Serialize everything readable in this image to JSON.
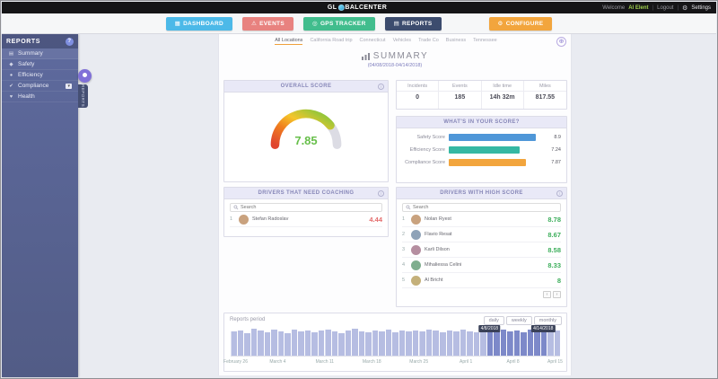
{
  "header": {
    "brand_prefix": "GL",
    "brand_suffix": "BALCENTER",
    "welcome_label": "Welcome",
    "user_name": "Al Elent",
    "logout_label": "Logout",
    "settings_label": "Settings",
    "settings_icon": "⚙",
    "separator": "|"
  },
  "nav": {
    "items": [
      {
        "label": "DASHBOARD",
        "icon": "▦",
        "color": "#4cb9e8",
        "active": false
      },
      {
        "label": "EVENTS",
        "icon": "⚠",
        "color": "#e8827f",
        "active": false
      },
      {
        "label": "GPS TRACKER",
        "icon": "◎",
        "color": "#41bd8d",
        "active": false
      },
      {
        "label": "REPORTS",
        "icon": "▤",
        "color": "#3c4c6e",
        "active": true
      },
      {
        "label": "CONFIGURE",
        "icon": "⚙",
        "color": "#f2a53d",
        "active": false
      }
    ]
  },
  "sidebar": {
    "title": "REPORTS",
    "handle_label": "REPORTS",
    "items": [
      {
        "label": "Summary",
        "icon": "▤",
        "active": true
      },
      {
        "label": "Safety",
        "icon": "◆",
        "active": false
      },
      {
        "label": "Efficiency",
        "icon": "●",
        "active": false
      },
      {
        "label": "Compliance",
        "icon": "✔",
        "flag": "▾",
        "active": false
      },
      {
        "label": "Health",
        "icon": "♥",
        "active": false
      }
    ]
  },
  "content": {
    "tabs": [
      "All Locations",
      "California Road trip",
      "Connecticut",
      "Vehicles",
      "Trade Co",
      "Business",
      "Tennessee"
    ],
    "expand_icon": "⊕",
    "summary_title": "SUMMARY",
    "summary_date_range": "(04/08/2018-04/14/2018)",
    "overall_score": {
      "title": "OVERALL SCORE",
      "value": "7.85",
      "max": 10
    },
    "stats": {
      "columns": [
        {
          "label": "Incidents",
          "value": "0"
        },
        {
          "label": "Events",
          "value": "185"
        },
        {
          "label": "Idle time",
          "value": "14h 32m"
        },
        {
          "label": "Miles",
          "value": "817.55"
        }
      ]
    },
    "score_breakdown": {
      "title": "WHAT'S IN YOUR SCORE?",
      "rows": [
        {
          "label": "Safety Score",
          "value": 8.9,
          "display": "8.9",
          "color": "#4f97d8"
        },
        {
          "label": "Efficiency Score",
          "value": 7.24,
          "display": "7.24",
          "color": "#35b8a3"
        },
        {
          "label": "Compliance Score",
          "value": 7.87,
          "display": "7.87",
          "color": "#f2a53d"
        }
      ]
    },
    "coaching": {
      "title": "DRIVERS THAT NEED COACHING",
      "search_placeholder": "Search",
      "score_color": "#e36a6a",
      "drivers": [
        {
          "rank": "1",
          "name": "Stefan Radoslav",
          "score": "4.44"
        }
      ]
    },
    "high_score": {
      "title": "DRIVERS WITH HIGH SCORE",
      "search_placeholder": "Search",
      "score_color": "#3cae5b",
      "drivers": [
        {
          "rank": "1",
          "name": "Nolan Ryest",
          "score": "8.78"
        },
        {
          "rank": "2",
          "name": "Flavio Resat",
          "score": "8.67"
        },
        {
          "rank": "3",
          "name": "Karli Dilson",
          "score": "8.58"
        },
        {
          "rank": "4",
          "name": "Mihaliessa Celini",
          "score": "8.33"
        },
        {
          "rank": "5",
          "name": "Al Bricht",
          "score": "8"
        }
      ],
      "pager": {
        "prev": "‹",
        "next": "›"
      }
    },
    "reports_period": {
      "title": "Reports period",
      "buttons": [
        "daily",
        "weekly",
        "monthly"
      ],
      "axis_labels": [
        "February 26",
        "March 4",
        "March 11",
        "March 18",
        "March 25",
        "April 1",
        "April 8",
        "April 15"
      ],
      "selection": {
        "start_label": "4/8/2018",
        "end_label": "4/14/2018",
        "start_index": 38,
        "end_index": 46
      },
      "bar_color": "#b6bde2",
      "selected_bar_color": "#7d89c9",
      "bars": [
        0.9,
        0.95,
        0.85,
        1.0,
        0.92,
        0.88,
        0.96,
        0.9,
        0.84,
        0.97,
        0.9,
        0.95,
        0.87,
        0.93,
        0.96,
        0.9,
        0.85,
        0.94,
        0.99,
        0.9,
        0.88,
        0.95,
        0.9,
        0.97,
        0.86,
        0.92,
        0.9,
        0.95,
        0.89,
        0.96,
        0.92,
        0.87,
        0.94,
        0.9,
        0.98,
        0.91,
        0.86,
        0.95,
        0.9,
        0.93,
        0.97,
        0.9,
        0.94,
        0.88,
        0.96,
        0.91,
        0.95,
        0.9,
        0.92
      ]
    }
  },
  "chart_data": [
    {
      "type": "gauge",
      "title": "OVERALL SCORE",
      "value": 7.85,
      "min": 0,
      "max": 10
    },
    {
      "type": "bar",
      "orientation": "horizontal",
      "title": "WHAT'S IN YOUR SCORE?",
      "categories": [
        "Safety Score",
        "Efficiency Score",
        "Compliance Score"
      ],
      "values": [
        8.9,
        7.24,
        7.87
      ],
      "xlim": [
        0,
        10
      ]
    },
    {
      "type": "bar",
      "title": "Reports period",
      "x": [
        "February 26",
        "March 4",
        "March 11",
        "March 18",
        "March 25",
        "April 1",
        "April 8",
        "April 15"
      ],
      "note": "daily activity range selector Feb 26 - Apr 15, selected 4/8/2018-4/14/2018"
    }
  ]
}
